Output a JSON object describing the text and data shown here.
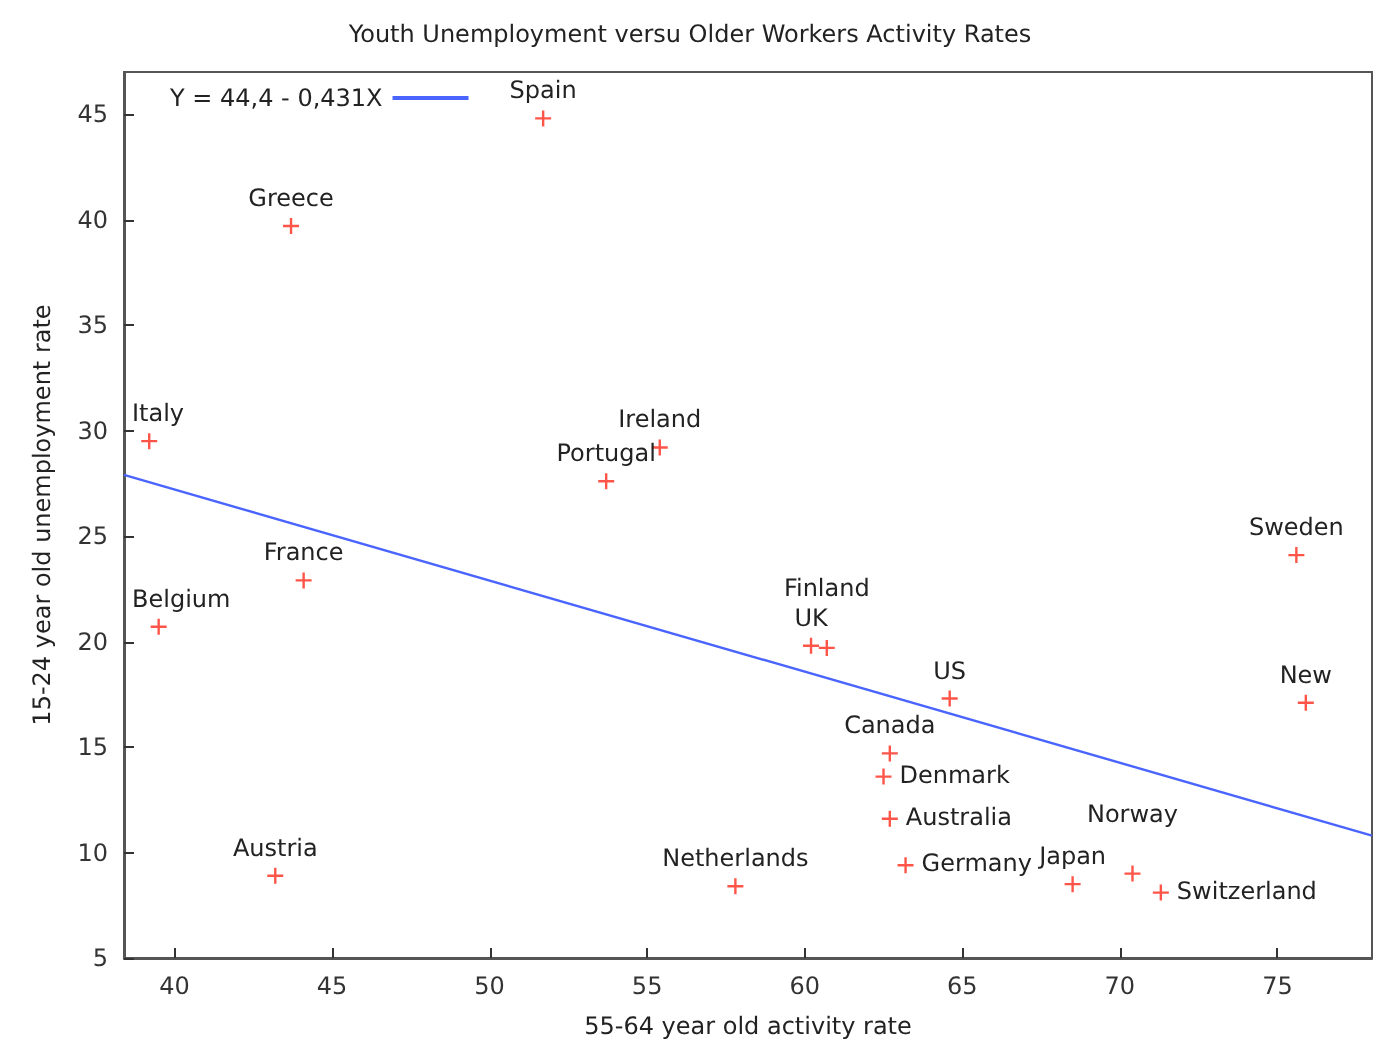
{
  "chart_data": {
    "type": "scatter",
    "title": "Youth Unemployment versu Older Workers Activity Rates",
    "xlabel": "55-64 year old activity rate",
    "ylabel": "15-24 year old unemployment rate",
    "xlim": [
      38.4,
      78
    ],
    "ylim": [
      5,
      47
    ],
    "xticks": [
      40,
      45,
      50,
      55,
      60,
      65,
      70,
      75
    ],
    "yticks": [
      5,
      10,
      15,
      20,
      25,
      30,
      35,
      40,
      45
    ],
    "grid": false,
    "legend": "top left",
    "series": [
      {
        "marker": "cross",
        "color": "#ff2a1a",
        "x": [
          51.7,
          43.7,
          39.2,
          55.4,
          53.7,
          44.1,
          39.5,
          75.6,
          60.2,
          60.7,
          64.6,
          75.9,
          62.7,
          62.5,
          62.7,
          63.2,
          57.8,
          68.5,
          70.4,
          71.3,
          43.2
        ],
        "values": [
          44.8,
          39.7,
          29.5,
          29.2,
          27.6,
          22.9,
          20.7,
          24.1,
          19.8,
          19.7,
          17.3,
          17.1,
          14.7,
          13.6,
          11.6,
          9.4,
          8.4,
          8.5,
          9.0,
          8.1,
          8.9
        ]
      },
      {
        "type": "line",
        "name": "Y = 44,4 - 0,431X",
        "color": "#4a64ff",
        "marker": "none",
        "line_style": "solid",
        "x": [
          38.4,
          78
        ],
        "values": [
          27.9,
          10.8
        ]
      }
    ],
    "annotations": [
      {
        "text": "Spain",
        "x": 51.7,
        "y": 44.8
      },
      {
        "text": "Greece",
        "x": 43.7,
        "y": 39.7
      },
      {
        "text": "Italy",
        "x": 39.2,
        "y": 29.5
      },
      {
        "text": "Ireland",
        "x": 55.4,
        "y": 29.2
      },
      {
        "text": "Portugal",
        "x": 53.7,
        "y": 27.6
      },
      {
        "text": "France",
        "x": 44.1,
        "y": 22.9
      },
      {
        "text": "Belgium",
        "x": 39.5,
        "y": 20.7
      },
      {
        "text": "Sweden",
        "x": 75.6,
        "y": 24.1
      },
      {
        "text": "UK",
        "x": 60.2,
        "y": 19.8
      },
      {
        "text": "Finland",
        "x": 60.7,
        "y": 19.7
      },
      {
        "text": "US",
        "x": 64.6,
        "y": 17.3
      },
      {
        "text": "New",
        "x": 75.9,
        "y": 17.1
      },
      {
        "text": "Canada",
        "x": 62.7,
        "y": 14.7
      },
      {
        "text": "Denmark",
        "x": 62.5,
        "y": 13.6
      },
      {
        "text": "Australia",
        "x": 62.7,
        "y": 11.6
      },
      {
        "text": "Germany",
        "x": 63.2,
        "y": 9.4
      },
      {
        "text": "Netherlands",
        "x": 57.8,
        "y": 8.4
      },
      {
        "text": "Japan",
        "x": 68.5,
        "y": 8.5
      },
      {
        "text": "Norway",
        "x": 70.4,
        "y": 9.0
      },
      {
        "text": "Switzerland",
        "x": 71.3,
        "y": 8.1
      },
      {
        "text": "Austria",
        "x": 43.2,
        "y": 8.9
      }
    ]
  }
}
